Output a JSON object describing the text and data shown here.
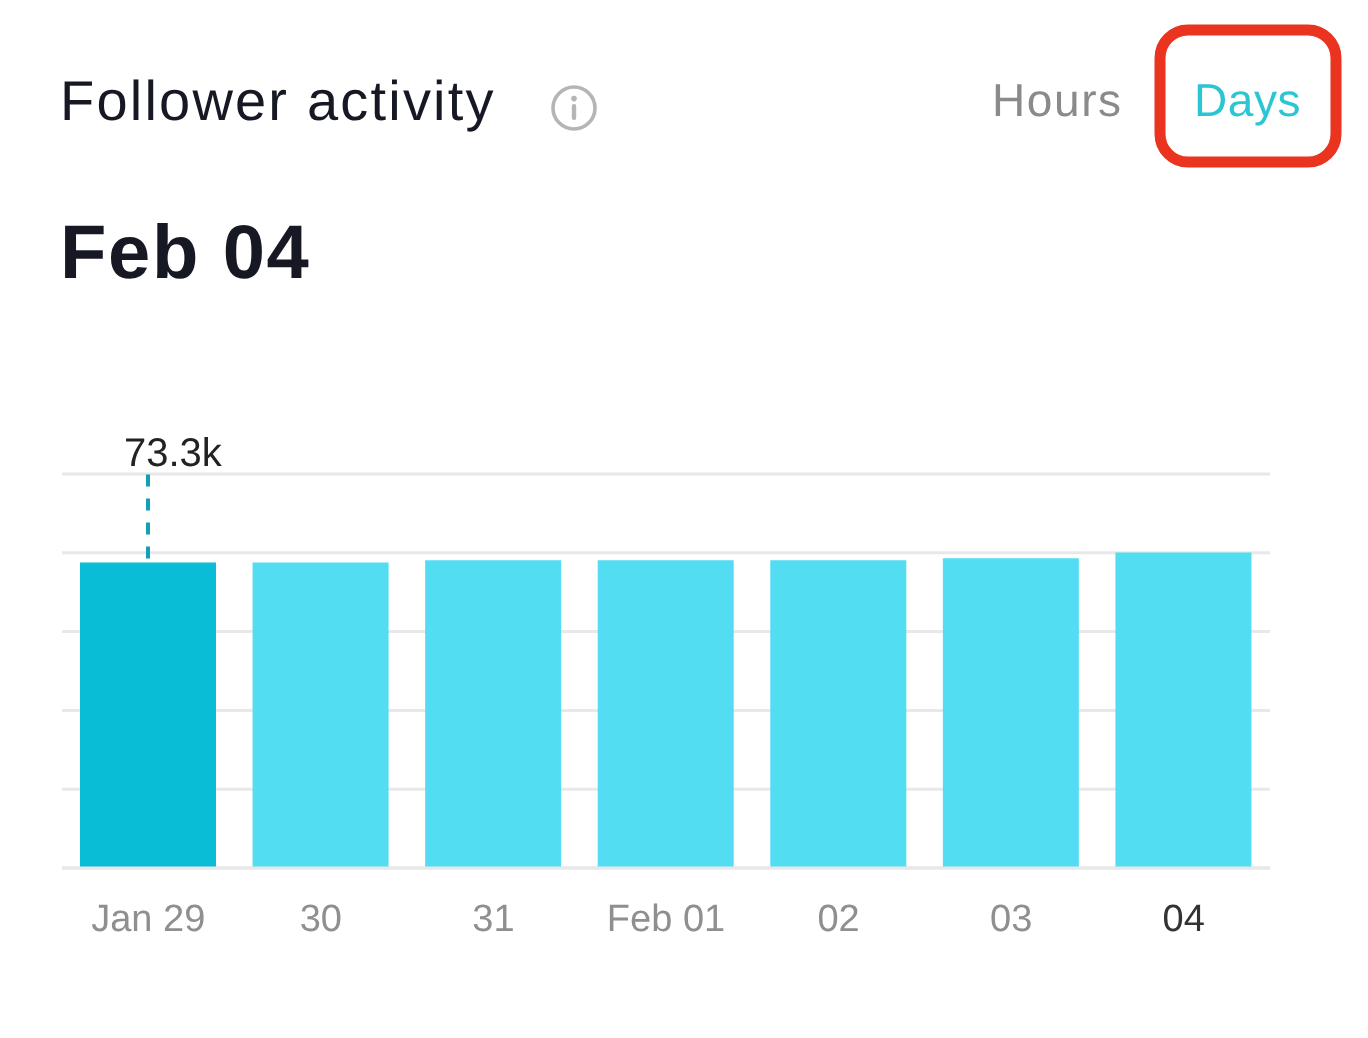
{
  "chart_data": {
    "type": "bar",
    "title": "Follower activity",
    "subtitle": "Feb 04",
    "categories": [
      "Jan 29",
      "30",
      "31",
      "Feb 01",
      "02",
      "03",
      "04"
    ],
    "values": [
      73300,
      73300,
      73800,
      73800,
      73800,
      74300,
      75700
    ],
    "colors": [
      "#0abdd6",
      "#52ddf3",
      "#52ddf3",
      "#52ddf3",
      "#52ddf3",
      "#52ddf3",
      "#52ddf3"
    ],
    "value_labels": [
      "73.3k",
      null,
      null,
      null,
      null,
      null,
      null
    ],
    "ylim": [
      0,
      94500
    ],
    "yticks": [
      {
        "value": 0,
        "label": null
      },
      {
        "value": 18900,
        "label": null
      },
      {
        "value": 37800,
        "label": null
      },
      {
        "value": 56700,
        "label": null
      },
      {
        "value": 75600,
        "label": null
      },
      {
        "value": 94500,
        "label": null
      }
    ],
    "grid": "y",
    "tick_labels": "x",
    "annotations": [
      "Hours",
      "Days"
    ]
  }
}
